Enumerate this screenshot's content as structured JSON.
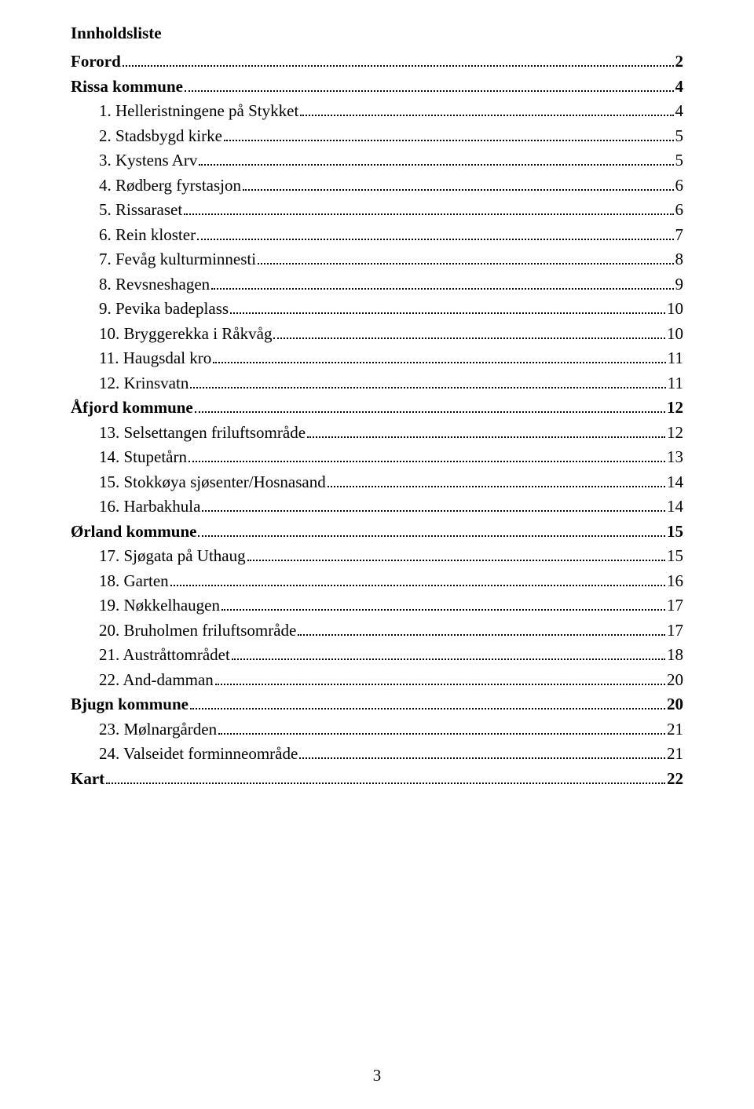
{
  "title": "Innholdsliste",
  "page_number": "3",
  "toc": [
    {
      "label": "Forord",
      "page": "2",
      "bold": true,
      "indent": false
    },
    {
      "label": "Rissa kommune",
      "page": "4",
      "bold": true,
      "indent": false
    },
    {
      "label": "1. Helleristningene på Stykket",
      "page": "4",
      "bold": false,
      "indent": true
    },
    {
      "label": "2. Stadsbygd kirke",
      "page": "5",
      "bold": false,
      "indent": true
    },
    {
      "label": "3. Kystens Arv",
      "page": "5",
      "bold": false,
      "indent": true
    },
    {
      "label": "4. Rødberg fyrstasjon",
      "page": "6",
      "bold": false,
      "indent": true
    },
    {
      "label": "5. Rissaraset",
      "page": "6",
      "bold": false,
      "indent": true
    },
    {
      "label": "6. Rein kloster",
      "page": "7",
      "bold": false,
      "indent": true
    },
    {
      "label": "7. Fevåg kulturminnesti",
      "page": "8",
      "bold": false,
      "indent": true
    },
    {
      "label": "8. Revsneshagen",
      "page": "9",
      "bold": false,
      "indent": true
    },
    {
      "label": "9. Pevika badeplass",
      "page": "10",
      "bold": false,
      "indent": true
    },
    {
      "label": "10. Bryggerekka i Råkvåg",
      "page": "10",
      "bold": false,
      "indent": true
    },
    {
      "label": "11. Haugsdal kro",
      "page": "11",
      "bold": false,
      "indent": true
    },
    {
      "label": "12. Krinsvatn",
      "page": "11",
      "bold": false,
      "indent": true
    },
    {
      "label": "Åfjord kommune",
      "page": "12",
      "bold": true,
      "indent": false
    },
    {
      "label": "13. Selsettangen friluftsområde",
      "page": "12",
      "bold": false,
      "indent": true
    },
    {
      "label": "14. Stupetårn",
      "page": "13",
      "bold": false,
      "indent": true
    },
    {
      "label": "15. Stokkøya sjøsenter/Hosnasand",
      "page": "14",
      "bold": false,
      "indent": true
    },
    {
      "label": "16. Harbakhula",
      "page": "14",
      "bold": false,
      "indent": true
    },
    {
      "label": "Ørland kommune",
      "page": "15",
      "bold": true,
      "indent": false
    },
    {
      "label": "17. Sjøgata på Uthaug",
      "page": "15",
      "bold": false,
      "indent": true
    },
    {
      "label": "18. Garten",
      "page": "16",
      "bold": false,
      "indent": true
    },
    {
      "label": "19. Nøkkelhaugen",
      "page": "17",
      "bold": false,
      "indent": true
    },
    {
      "label": "20. Bruholmen friluftsområde",
      "page": "17",
      "bold": false,
      "indent": true
    },
    {
      "label": "21. Austråttområdet",
      "page": "18",
      "bold": false,
      "indent": true
    },
    {
      "label": "22. And-damman",
      "page": "20",
      "bold": false,
      "indent": true
    },
    {
      "label": "Bjugn kommune",
      "page": "20",
      "bold": true,
      "indent": false
    },
    {
      "label": "23. Mølnargården",
      "page": "21",
      "bold": false,
      "indent": true
    },
    {
      "label": "24. Valseidet forminneområde",
      "page": "21",
      "bold": false,
      "indent": true
    },
    {
      "label": "Kart",
      "page": "22",
      "bold": true,
      "indent": false
    }
  ]
}
